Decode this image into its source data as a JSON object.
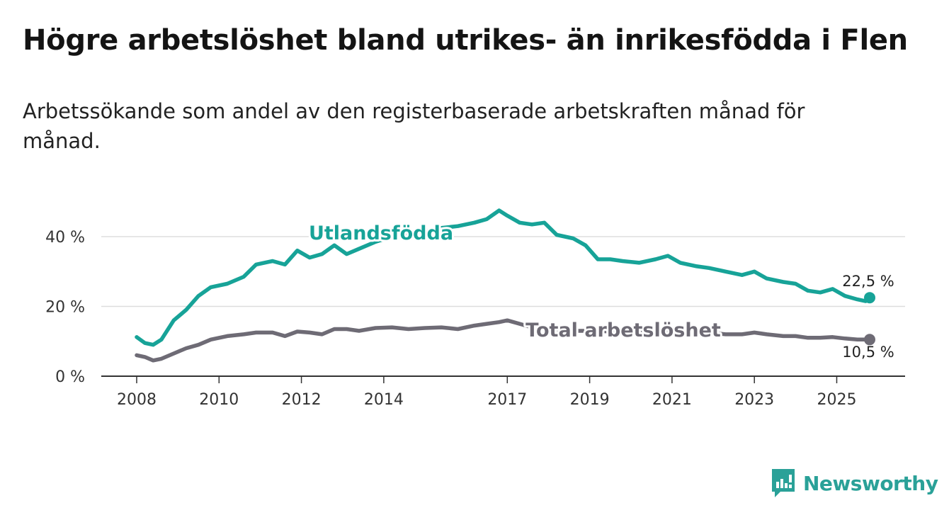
{
  "title": "Högre arbetslöshet bland utrikes- än inrikesfödda i Flen",
  "subtitle": "Arbetssökande som andel av den registerbaserade arbetskraften månad för månad.",
  "brand": {
    "name": "Newsworthy",
    "icon": "newsworthy-logo-icon"
  },
  "colors": {
    "utlandsfodda": "#17a398",
    "total": "#6e6b75",
    "grid": "#dddddd",
    "axis": "#333333"
  },
  "chart_data": {
    "type": "line",
    "title": "Högre arbetslöshet bland utrikes- än inrikesfödda i Flen",
    "xlabel": "",
    "ylabel": "",
    "xlim": [
      2008.0,
      2025.9
    ],
    "ylim": [
      0,
      50
    ],
    "y_ticks": [
      0,
      20,
      40
    ],
    "y_tick_labels": [
      "0 %",
      "20 %",
      "40 %"
    ],
    "x_ticks": [
      2008,
      2010,
      2012,
      2014,
      2017,
      2019,
      2021,
      2023,
      2025
    ],
    "x_tick_labels": [
      "2008",
      "2010",
      "2012",
      "2014",
      "2017",
      "2019",
      "2021",
      "2023",
      "2025"
    ],
    "grid": true,
    "series": [
      {
        "name": "Utlandsfödda",
        "color": "#17a398",
        "end_label": "22,5 %",
        "x": [
          2008.0,
          2008.2,
          2008.4,
          2008.6,
          2008.9,
          2009.2,
          2009.5,
          2009.8,
          2010.2,
          2010.6,
          2010.9,
          2011.3,
          2011.6,
          2011.9,
          2012.2,
          2012.5,
          2012.8,
          2013.1,
          2013.4,
          2013.8,
          2014.2,
          2014.6,
          2015.0,
          2015.4,
          2015.8,
          2016.2,
          2016.5,
          2016.8,
          2017.0,
          2017.3,
          2017.6,
          2017.9,
          2018.2,
          2018.6,
          2018.9,
          2019.2,
          2019.5,
          2019.8,
          2020.2,
          2020.6,
          2020.9,
          2021.2,
          2021.6,
          2021.9,
          2022.3,
          2022.7,
          2023.0,
          2023.3,
          2023.7,
          2024.0,
          2024.3,
          2024.6,
          2024.9,
          2025.2,
          2025.5,
          2025.7,
          2025.8
        ],
        "y": [
          11.2,
          9.5,
          9.0,
          10.5,
          16.0,
          19.0,
          23.0,
          25.5,
          26.5,
          28.5,
          32.0,
          33.0,
          32.0,
          36.0,
          34.0,
          35.0,
          37.5,
          35.0,
          36.5,
          38.5,
          40.0,
          41.0,
          41.5,
          42.5,
          43.0,
          44.0,
          45.0,
          47.5,
          46.0,
          44.0,
          43.5,
          44.0,
          40.5,
          39.5,
          37.5,
          33.5,
          33.5,
          33.0,
          32.5,
          33.5,
          34.5,
          32.5,
          31.5,
          31.0,
          30.0,
          29.0,
          30.0,
          28.0,
          27.0,
          26.5,
          24.5,
          24.0,
          25.0,
          23.0,
          22.0,
          21.5,
          22.5
        ]
      },
      {
        "name": "Total arbetslöshet",
        "color": "#6e6b75",
        "end_label": "10,5 %",
        "x": [
          2008.0,
          2008.2,
          2008.4,
          2008.6,
          2008.9,
          2009.2,
          2009.5,
          2009.8,
          2010.2,
          2010.6,
          2010.9,
          2011.3,
          2011.6,
          2011.9,
          2012.2,
          2012.5,
          2012.8,
          2013.1,
          2013.4,
          2013.8,
          2014.2,
          2014.6,
          2015.0,
          2015.4,
          2015.8,
          2016.2,
          2016.5,
          2016.8,
          2017.0,
          2017.3,
          2017.6,
          2017.9,
          2018.2,
          2018.6,
          2018.9,
          2019.2,
          2019.5,
          2019.8,
          2020.2,
          2020.6,
          2020.9,
          2021.2,
          2021.6,
          2021.9,
          2022.3,
          2022.7,
          2023.0,
          2023.3,
          2023.7,
          2024.0,
          2024.3,
          2024.6,
          2024.9,
          2025.2,
          2025.5,
          2025.7,
          2025.8
        ],
        "y": [
          6.0,
          5.5,
          4.5,
          5.0,
          6.5,
          8.0,
          9.0,
          10.5,
          11.5,
          12.0,
          12.5,
          12.5,
          11.5,
          12.8,
          12.5,
          12.0,
          13.5,
          13.5,
          13.0,
          13.8,
          14.0,
          13.5,
          13.8,
          14.0,
          13.5,
          14.5,
          15.0,
          15.5,
          16.0,
          15.0,
          14.0,
          13.5,
          13.5,
          13.0,
          13.0,
          13.0,
          12.8,
          12.5,
          12.5,
          12.8,
          13.0,
          12.8,
          12.5,
          12.5,
          12.0,
          12.0,
          12.5,
          12.0,
          11.5,
          11.5,
          11.0,
          11.0,
          11.2,
          10.8,
          10.5,
          10.5,
          10.5
        ]
      }
    ],
    "annotations": []
  }
}
